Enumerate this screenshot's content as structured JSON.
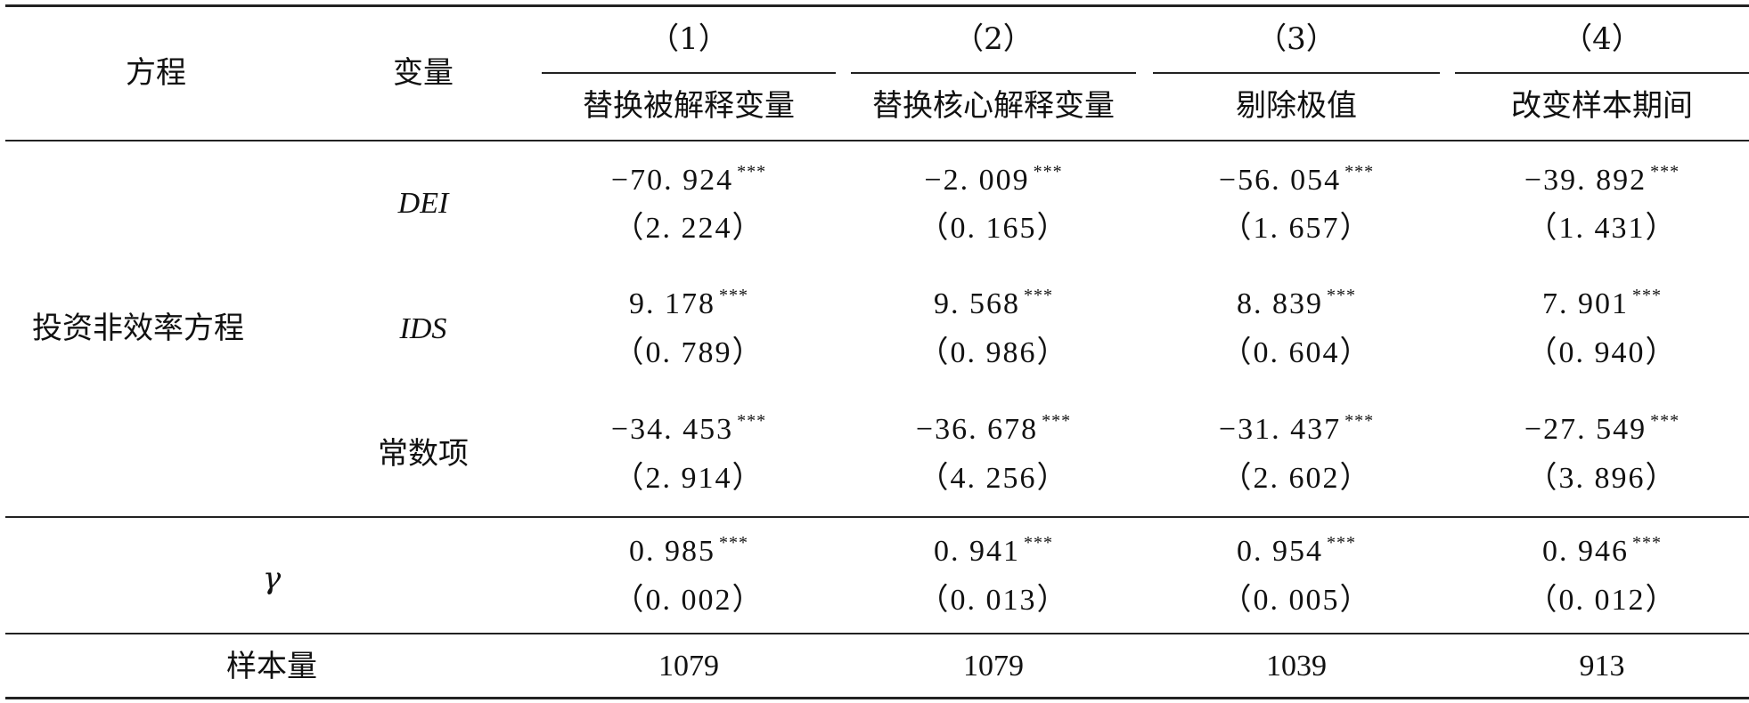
{
  "header": {
    "equation_label": "方程",
    "variable_label": "变量",
    "columns": [
      {
        "number": "（1）",
        "title": "替换被解释变量"
      },
      {
        "number": "（2）",
        "title": "替换核心解释变量"
      },
      {
        "number": "（3）",
        "title": "剔除极值"
      },
      {
        "number": "（4）",
        "title": "改变样本期间"
      }
    ]
  },
  "equation_name": "投资非效率方程",
  "rows": [
    {
      "variable": "DEI",
      "cells": [
        {
          "coef": "−70. 924",
          "stars": "***",
          "se": "（2. 224）"
        },
        {
          "coef": "−2. 009",
          "stars": "***",
          "se": "（0. 165）"
        },
        {
          "coef": "−56. 054",
          "stars": "***",
          "se": "（1. 657）"
        },
        {
          "coef": "−39. 892",
          "stars": "***",
          "se": "（1. 431）"
        }
      ]
    },
    {
      "variable": "IDS",
      "cells": [
        {
          "coef": "9. 178",
          "stars": "***",
          "se": "（0. 789）"
        },
        {
          "coef": "9. 568",
          "stars": "***",
          "se": "（0. 986）"
        },
        {
          "coef": "8. 839",
          "stars": "***",
          "se": "（0. 604）"
        },
        {
          "coef": "7. 901",
          "stars": "***",
          "se": "（0. 940）"
        }
      ]
    },
    {
      "variable": "常数项",
      "cells": [
        {
          "coef": "−34. 453",
          "stars": "***",
          "se": "（2. 914）"
        },
        {
          "coef": "−36. 678",
          "stars": "***",
          "se": "（4. 256）"
        },
        {
          "coef": "−31. 437",
          "stars": "***",
          "se": "（2. 602）"
        },
        {
          "coef": "−27. 549",
          "stars": "***",
          "se": "（3. 896）"
        }
      ]
    }
  ],
  "gamma": {
    "label": "γ",
    "cells": [
      {
        "coef": "0. 985",
        "stars": "***",
        "se": "（0. 002）"
      },
      {
        "coef": "0. 941",
        "stars": "***",
        "se": "（0. 013）"
      },
      {
        "coef": "0. 954",
        "stars": "***",
        "se": "（0. 005）"
      },
      {
        "coef": "0. 946",
        "stars": "***",
        "se": "（0. 012）"
      }
    ]
  },
  "sample_size": {
    "label": "样本量",
    "values": [
      "1079",
      "1079",
      "1039",
      "913"
    ]
  }
}
